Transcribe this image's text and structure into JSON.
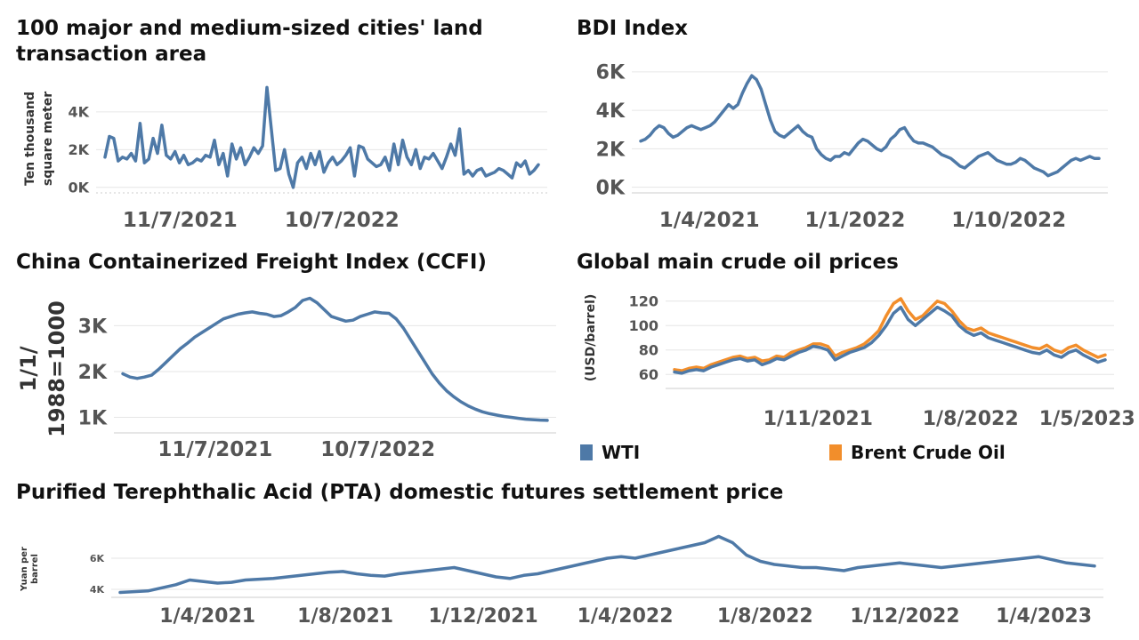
{
  "colors": {
    "line": "#4e79a7",
    "wti": "#4e79a7",
    "brent": "#f28e2b",
    "grid": "#e6e6e6",
    "axis": "#cccccc"
  },
  "chart_data": [
    {
      "id": "land",
      "type": "line",
      "title": "100 major and medium-sized cities' land transaction area",
      "ylabel": "Ten thousand square meter",
      "y_ticks": [
        0,
        2000,
        4000
      ],
      "y_tick_labels": [
        "0K",
        "2K",
        "4K"
      ],
      "x_tick_labels": [
        "11/7/2021",
        "10/7/2022"
      ],
      "ylim": [
        -200,
        5600
      ],
      "x_range": [
        "2021-01",
        "2023-05"
      ],
      "series": [
        {
          "values": [
            1600,
            2700,
            2600,
            1400,
            1600,
            1500,
            1800,
            1400,
            3400,
            1300,
            1500,
            2600,
            1800,
            3300,
            1700,
            1500,
            1900,
            1300,
            1700,
            1200,
            1300,
            1500,
            1400,
            1700,
            1600,
            2500,
            1200,
            1800,
            600,
            2300,
            1500,
            2100,
            1200,
            1600,
            2100,
            1800,
            2200,
            5300,
            3100,
            900,
            1000,
            2000,
            700,
            0,
            1300,
            1600,
            1000,
            1800,
            1200,
            1900,
            800,
            1300,
            1600,
            1200,
            1400,
            1700,
            2100,
            600,
            2200,
            2100,
            1500,
            1300,
            1100,
            1200,
            1600,
            900,
            2300,
            1200,
            2500,
            1600,
            1200,
            2000,
            1000,
            1600,
            1500,
            1800,
            1400,
            1000,
            1600,
            2300,
            1700,
            3100,
            700,
            900,
            600,
            900,
            1000,
            600,
            700,
            800,
            1000,
            900,
            700,
            500,
            1300,
            1100,
            1400,
            700,
            900,
            1200
          ]
        }
      ]
    },
    {
      "id": "bdi",
      "type": "line",
      "title": "BDI Index",
      "y_ticks": [
        0,
        2000,
        4000,
        6000
      ],
      "y_tick_labels": [
        "0K",
        "2K",
        "4K",
        "6K"
      ],
      "x_tick_labels": [
        "1/4/2021",
        "1/1/2022",
        "1/10/2022"
      ],
      "ylim": [
        -200,
        6500
      ],
      "x_range": [
        "2021-03",
        "2023-05"
      ],
      "series": [
        {
          "values": [
            2400,
            2500,
            2700,
            3000,
            3200,
            3100,
            2800,
            2600,
            2700,
            2900,
            3100,
            3200,
            3100,
            3000,
            3100,
            3200,
            3400,
            3700,
            4000,
            4300,
            4100,
            4300,
            4900,
            5400,
            5800,
            5600,
            5100,
            4300,
            3500,
            2900,
            2700,
            2600,
            2800,
            3000,
            3200,
            2900,
            2700,
            2600,
            2000,
            1700,
            1500,
            1400,
            1600,
            1600,
            1800,
            1700,
            2000,
            2300,
            2500,
            2400,
            2200,
            2000,
            1900,
            2100,
            2500,
            2700,
            3000,
            3100,
            2700,
            2400,
            2300,
            2300,
            2200,
            2100,
            1900,
            1700,
            1600,
            1500,
            1300,
            1100,
            1000,
            1200,
            1400,
            1600,
            1700,
            1800,
            1600,
            1400,
            1300,
            1200,
            1200,
            1300,
            1500,
            1400,
            1200,
            1000,
            900,
            800,
            600,
            700,
            800,
            1000,
            1200,
            1400,
            1500,
            1400,
            1500,
            1600,
            1500,
            1500
          ]
        }
      ]
    },
    {
      "id": "ccfi",
      "type": "line",
      "title": "China Containerized Freight Index (CCFI)",
      "ylabel": "1/1/ 1988=1000",
      "y_ticks": [
        1000,
        2000,
        3000
      ],
      "y_tick_labels": [
        "1K",
        "2K",
        "3K"
      ],
      "x_tick_labels": [
        "11/7/2021",
        "10/7/2022"
      ],
      "ylim": [
        700,
        3900
      ],
      "x_range": [
        "2021-05",
        "2023-05"
      ],
      "series": [
        {
          "values": [
            1950,
            1880,
            1850,
            1880,
            1920,
            2050,
            2200,
            2350,
            2500,
            2620,
            2750,
            2850,
            2950,
            3050,
            3150,
            3200,
            3250,
            3280,
            3300,
            3270,
            3250,
            3200,
            3220,
            3300,
            3400,
            3550,
            3600,
            3500,
            3350,
            3200,
            3150,
            3100,
            3120,
            3200,
            3250,
            3300,
            3280,
            3270,
            3150,
            2950,
            2700,
            2450,
            2200,
            1950,
            1750,
            1580,
            1450,
            1340,
            1250,
            1180,
            1120,
            1080,
            1050,
            1020,
            1000,
            980,
            960,
            950,
            940,
            935
          ]
        }
      ]
    },
    {
      "id": "oil",
      "type": "line",
      "title": "Global main crude oil prices",
      "ylabel": "(USD/barrel)",
      "y_ticks": [
        60,
        80,
        100,
        120
      ],
      "y_tick_labels": [
        "60",
        "80",
        "100",
        "120"
      ],
      "x_tick_labels": [
        "1/11/2021",
        "1/8/2022",
        "1/5/2023"
      ],
      "ylim": [
        50,
        130
      ],
      "x_range": [
        "2021-03",
        "2023-06"
      ],
      "legend_position": "bottom",
      "series": [
        {
          "name": "WTI",
          "values": [
            62,
            61,
            63,
            64,
            63,
            66,
            68,
            70,
            72,
            73,
            71,
            72,
            68,
            70,
            73,
            72,
            75,
            78,
            80,
            83,
            82,
            80,
            72,
            75,
            78,
            80,
            82,
            86,
            92,
            100,
            110,
            115,
            105,
            100,
            105,
            110,
            115,
            112,
            108,
            100,
            95,
            92,
            94,
            90,
            88,
            86,
            84,
            82,
            80,
            78,
            77,
            80,
            76,
            74,
            78,
            80,
            76,
            73,
            70,
            72
          ]
        },
        {
          "name": "Brent Crude Oil",
          "values": [
            64,
            63,
            65,
            66,
            65,
            68,
            70,
            72,
            74,
            75,
            73,
            74,
            71,
            72,
            75,
            74,
            78,
            80,
            82,
            85,
            85,
            83,
            75,
            78,
            80,
            82,
            85,
            90,
            96,
            108,
            118,
            122,
            112,
            105,
            108,
            114,
            120,
            118,
            112,
            104,
            98,
            96,
            98,
            94,
            92,
            90,
            88,
            86,
            84,
            82,
            81,
            84,
            80,
            78,
            82,
            84,
            80,
            77,
            74,
            76
          ]
        }
      ]
    },
    {
      "id": "pta",
      "type": "line",
      "title": "Purified Terephthalic Acid (PTA) domestic futures settlement price",
      "ylabel": "Yuan per barrel",
      "y_ticks": [
        4000,
        6000
      ],
      "y_tick_labels": [
        "4K",
        "6K"
      ],
      "x_tick_labels": [
        "1/4/2021",
        "1/8/2021",
        "1/12/2021",
        "1/4/2022",
        "1/8/2022",
        "1/12/2022",
        "1/4/2023"
      ],
      "ylim": [
        3600,
        7600
      ],
      "x_range": [
        "2021-01",
        "2023-05"
      ],
      "series": [
        {
          "values": [
            3800,
            3850,
            3900,
            4100,
            4300,
            4600,
            4500,
            4400,
            4450,
            4600,
            4650,
            4700,
            4800,
            4900,
            5000,
            5100,
            5150,
            5000,
            4900,
            4850,
            5000,
            5100,
            5200,
            5300,
            5400,
            5200,
            5000,
            4800,
            4700,
            4900,
            5000,
            5200,
            5400,
            5600,
            5800,
            6000,
            6100,
            6000,
            6200,
            6400,
            6600,
            6800,
            7000,
            7400,
            7000,
            6200,
            5800,
            5600,
            5500,
            5400,
            5400,
            5300,
            5200,
            5400,
            5500,
            5600,
            5700,
            5600,
            5500,
            5400,
            5500,
            5600,
            5700,
            5800,
            5900,
            6000,
            6100,
            5900,
            5700,
            5600,
            5500
          ]
        }
      ]
    }
  ]
}
